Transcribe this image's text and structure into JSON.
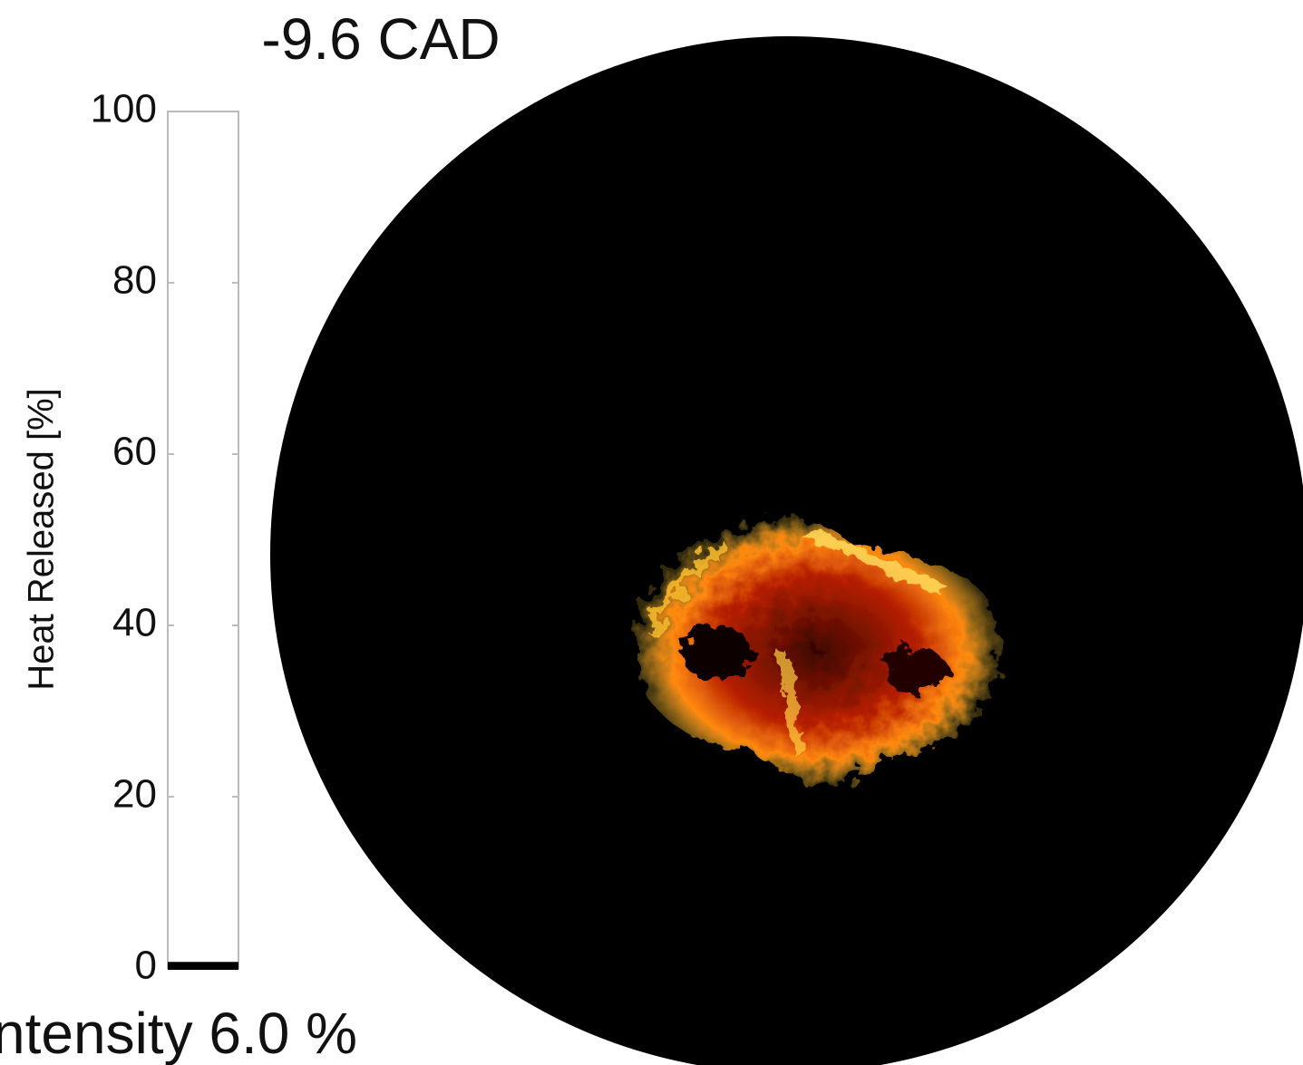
{
  "chart_data": {
    "type": "bar",
    "title": "-9.6 CAD",
    "footer": "ntensity 6.0 %",
    "y_label": "Heat Released [%]",
    "categories": [
      null
    ],
    "values": [
      0.5
    ],
    "color": "#000000",
    "ylim": [
      0,
      100
    ],
    "yticks": [
      0,
      20,
      40,
      60,
      80,
      100
    ],
    "grid": false
  }
}
